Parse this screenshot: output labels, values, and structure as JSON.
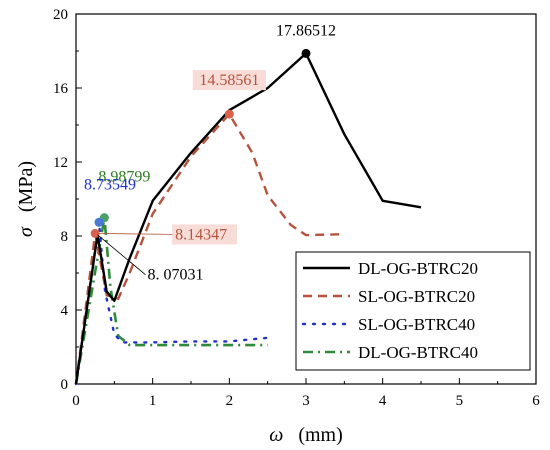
{
  "chart_data": {
    "type": "line",
    "title": "",
    "xlabel_symbol": "ω",
    "xlabel_unit": "(mm)",
    "ylabel_symbol": "σ",
    "ylabel_unit": "(MPa)",
    "xlim": [
      0,
      6
    ],
    "ylim": [
      0,
      20
    ],
    "xticks": [
      0,
      1,
      2,
      3,
      4,
      5,
      6
    ],
    "yticks": [
      0,
      4,
      8,
      12,
      16,
      20
    ],
    "grid": false,
    "legend_position": "bottom-right",
    "series": [
      {
        "name": "DL-OG-BTRC20",
        "color": "#000000",
        "dash": "solid",
        "points": [
          [
            0,
            0
          ],
          [
            0.28,
            8.07
          ],
          [
            0.4,
            5.0
          ],
          [
            0.5,
            4.5
          ],
          [
            0.7,
            6.8
          ],
          [
            1.0,
            9.9
          ],
          [
            1.5,
            12.5
          ],
          [
            2.0,
            14.8
          ],
          [
            2.5,
            16.0
          ],
          [
            3.0,
            17.87
          ],
          [
            3.5,
            13.5
          ],
          [
            4.0,
            9.9
          ],
          [
            4.5,
            9.55
          ]
        ]
      },
      {
        "name": "SL-OG-BTRC20",
        "color": "#b5533c",
        "dash": "dashed",
        "points": [
          [
            0,
            0
          ],
          [
            0.25,
            8.14
          ],
          [
            0.4,
            4.8
          ],
          [
            0.55,
            4.6
          ],
          [
            0.7,
            6.0
          ],
          [
            1.0,
            9.2
          ],
          [
            1.5,
            12.3
          ],
          [
            2.0,
            14.59
          ],
          [
            2.3,
            12.5
          ],
          [
            2.5,
            10.2
          ],
          [
            2.8,
            8.6
          ],
          [
            3.0,
            8.05
          ],
          [
            3.5,
            8.1
          ]
        ]
      },
      {
        "name": "SL-OG-BTRC40",
        "color": "#2233cc",
        "dash": "dotted",
        "points": [
          [
            0,
            0
          ],
          [
            0.3,
            8.74
          ],
          [
            0.38,
            5.0
          ],
          [
            0.5,
            2.7
          ],
          [
            0.6,
            2.25
          ],
          [
            1.0,
            2.25
          ],
          [
            1.5,
            2.3
          ],
          [
            2.0,
            2.3
          ],
          [
            2.5,
            2.5
          ]
        ]
      },
      {
        "name": "DL-OG-BTRC40",
        "color": "#2e8b3a",
        "dash": "dashdot",
        "points": [
          [
            0,
            0
          ],
          [
            0.37,
            8.99
          ],
          [
            0.45,
            5.2
          ],
          [
            0.55,
            2.6
          ],
          [
            0.7,
            2.1
          ],
          [
            1.0,
            2.1
          ],
          [
            1.5,
            2.1
          ],
          [
            2.0,
            2.1
          ],
          [
            2.5,
            2.1
          ]
        ]
      }
    ],
    "annotations": [
      {
        "text": "17.86512",
        "x": 3.0,
        "y": 17.87,
        "color": "#000000",
        "marker": "#000000",
        "bg": ""
      },
      {
        "text": "14.58561",
        "x": 2.0,
        "y": 14.59,
        "color": "#b5533c",
        "marker": "#d9604a",
        "bg": "#f7dcd7"
      },
      {
        "text": "8.98799",
        "x": 0.37,
        "y": 8.99,
        "color": "#2e7d22",
        "marker": "#4aa068",
        "bg": ""
      },
      {
        "text": "8.73549",
        "x": 0.3,
        "y": 8.74,
        "color": "#2233cc",
        "marker": "#4a78d6",
        "bg": ""
      },
      {
        "text": "8.14347",
        "x": 0.25,
        "y": 8.14,
        "color": "#b5533c",
        "marker": "#d9604a",
        "bg": "#f7dcd7"
      },
      {
        "text": "8. 07031",
        "x": 0.28,
        "y": 8.07,
        "color": "#000000",
        "marker": "",
        "bg": ""
      }
    ]
  }
}
